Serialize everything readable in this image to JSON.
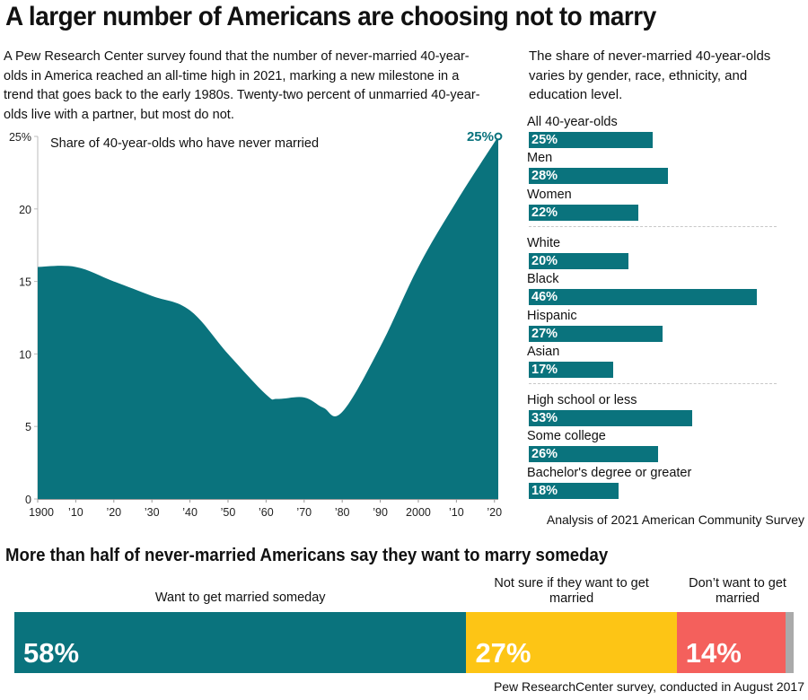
{
  "title": "A larger number of Americans are choosing not to marry",
  "intro": "A Pew Research Center survey found that the number of never-married 40-year-olds in America reached an all-time high in 2021, marking a new milestone in a trend that goes back to the early 1980s. Twenty-two percent of unmarried 40-year-olds live with a partner, but most do not.",
  "side_intro": "The share of never-married 40-year-olds varies by gender, race, ethnicity, and education level.",
  "subtitle2": "More than half of never-married Americans say they want to marry someday",
  "source_acs": "Analysis of 2021 American Community Survey",
  "source_pew": "Pew ResearchCenter survey, conducted in August 2017",
  "colors": {
    "teal": "#0a737d",
    "yellow": "#fdc515",
    "red": "#f4605c",
    "gray": "#aaaaaa",
    "axis": "#bbbbbb"
  },
  "chart_data": [
    {
      "type": "area",
      "title": "Share of 40-year-olds who have never married",
      "xlabel": "",
      "ylabel": "",
      "x": [
        1900,
        1910,
        1920,
        1930,
        1940,
        1950,
        1960,
        1963,
        1970,
        1975,
        1980,
        1990,
        2000,
        2010,
        2021
      ],
      "values": [
        16,
        16,
        15,
        14,
        13,
        10,
        7.2,
        6.9,
        7.0,
        6.3,
        6.0,
        10.5,
        16,
        20.5,
        25
      ],
      "xlim": [
        1900,
        2021
      ],
      "ylim": [
        0,
        25
      ],
      "yticks": [
        0,
        5,
        10,
        15,
        20,
        25
      ],
      "ytick_labels": [
        "0",
        "5",
        "10",
        "15",
        "20",
        "25%"
      ],
      "xticks": [
        1900,
        1910,
        1920,
        1930,
        1940,
        1950,
        1960,
        1970,
        1980,
        1990,
        2000,
        2010,
        2020
      ],
      "xtick_labels": [
        "1900",
        "’10",
        "’20",
        "’30",
        "’40",
        "’50",
        "’60",
        "’70",
        "’80",
        "’90",
        "2000",
        "’10",
        "’20"
      ],
      "annotation": {
        "label": "25%",
        "x": 2021,
        "y": 25
      },
      "grid": false
    },
    {
      "type": "bar",
      "orientation": "horizontal",
      "title": "",
      "groups": [
        {
          "items": [
            {
              "label": "All 40-year-olds",
              "value": 25,
              "value_label": "25%"
            },
            {
              "label": "Men",
              "value": 28,
              "value_label": "28%"
            },
            {
              "label": "Women",
              "value": 22,
              "value_label": "22%"
            }
          ]
        },
        {
          "items": [
            {
              "label": "White",
              "value": 20,
              "value_label": "20%"
            },
            {
              "label": "Black",
              "value": 46,
              "value_label": "46%"
            },
            {
              "label": "Hispanic",
              "value": 27,
              "value_label": "27%"
            },
            {
              "label": "Asian",
              "value": 17,
              "value_label": "17%"
            }
          ]
        },
        {
          "items": [
            {
              "label": "High school or less",
              "value": 33,
              "value_label": "33%"
            },
            {
              "label": "Some college",
              "value": 26,
              "value_label": "26%"
            },
            {
              "label": "Bachelor's degree or greater",
              "value": 18,
              "value_label": "18%"
            }
          ]
        }
      ],
      "xlim": [
        0,
        46
      ]
    },
    {
      "type": "bar",
      "orientation": "stacked-horizontal",
      "title": "More than half of never-married Americans say they want to marry someday",
      "segments": [
        {
          "label": "Want to get married someday",
          "value": 58,
          "value_label": "58%",
          "color": "#0a737d"
        },
        {
          "label": "Not sure if they want to get married",
          "value": 27,
          "value_label": "27%",
          "color": "#fdc515"
        },
        {
          "label": "Don’t want to get married",
          "value": 14,
          "value_label": "14%",
          "color": "#f4605c"
        },
        {
          "label": "",
          "value": 1,
          "value_label": "",
          "color": "#aaaaaa"
        }
      ],
      "total": 100
    }
  ]
}
